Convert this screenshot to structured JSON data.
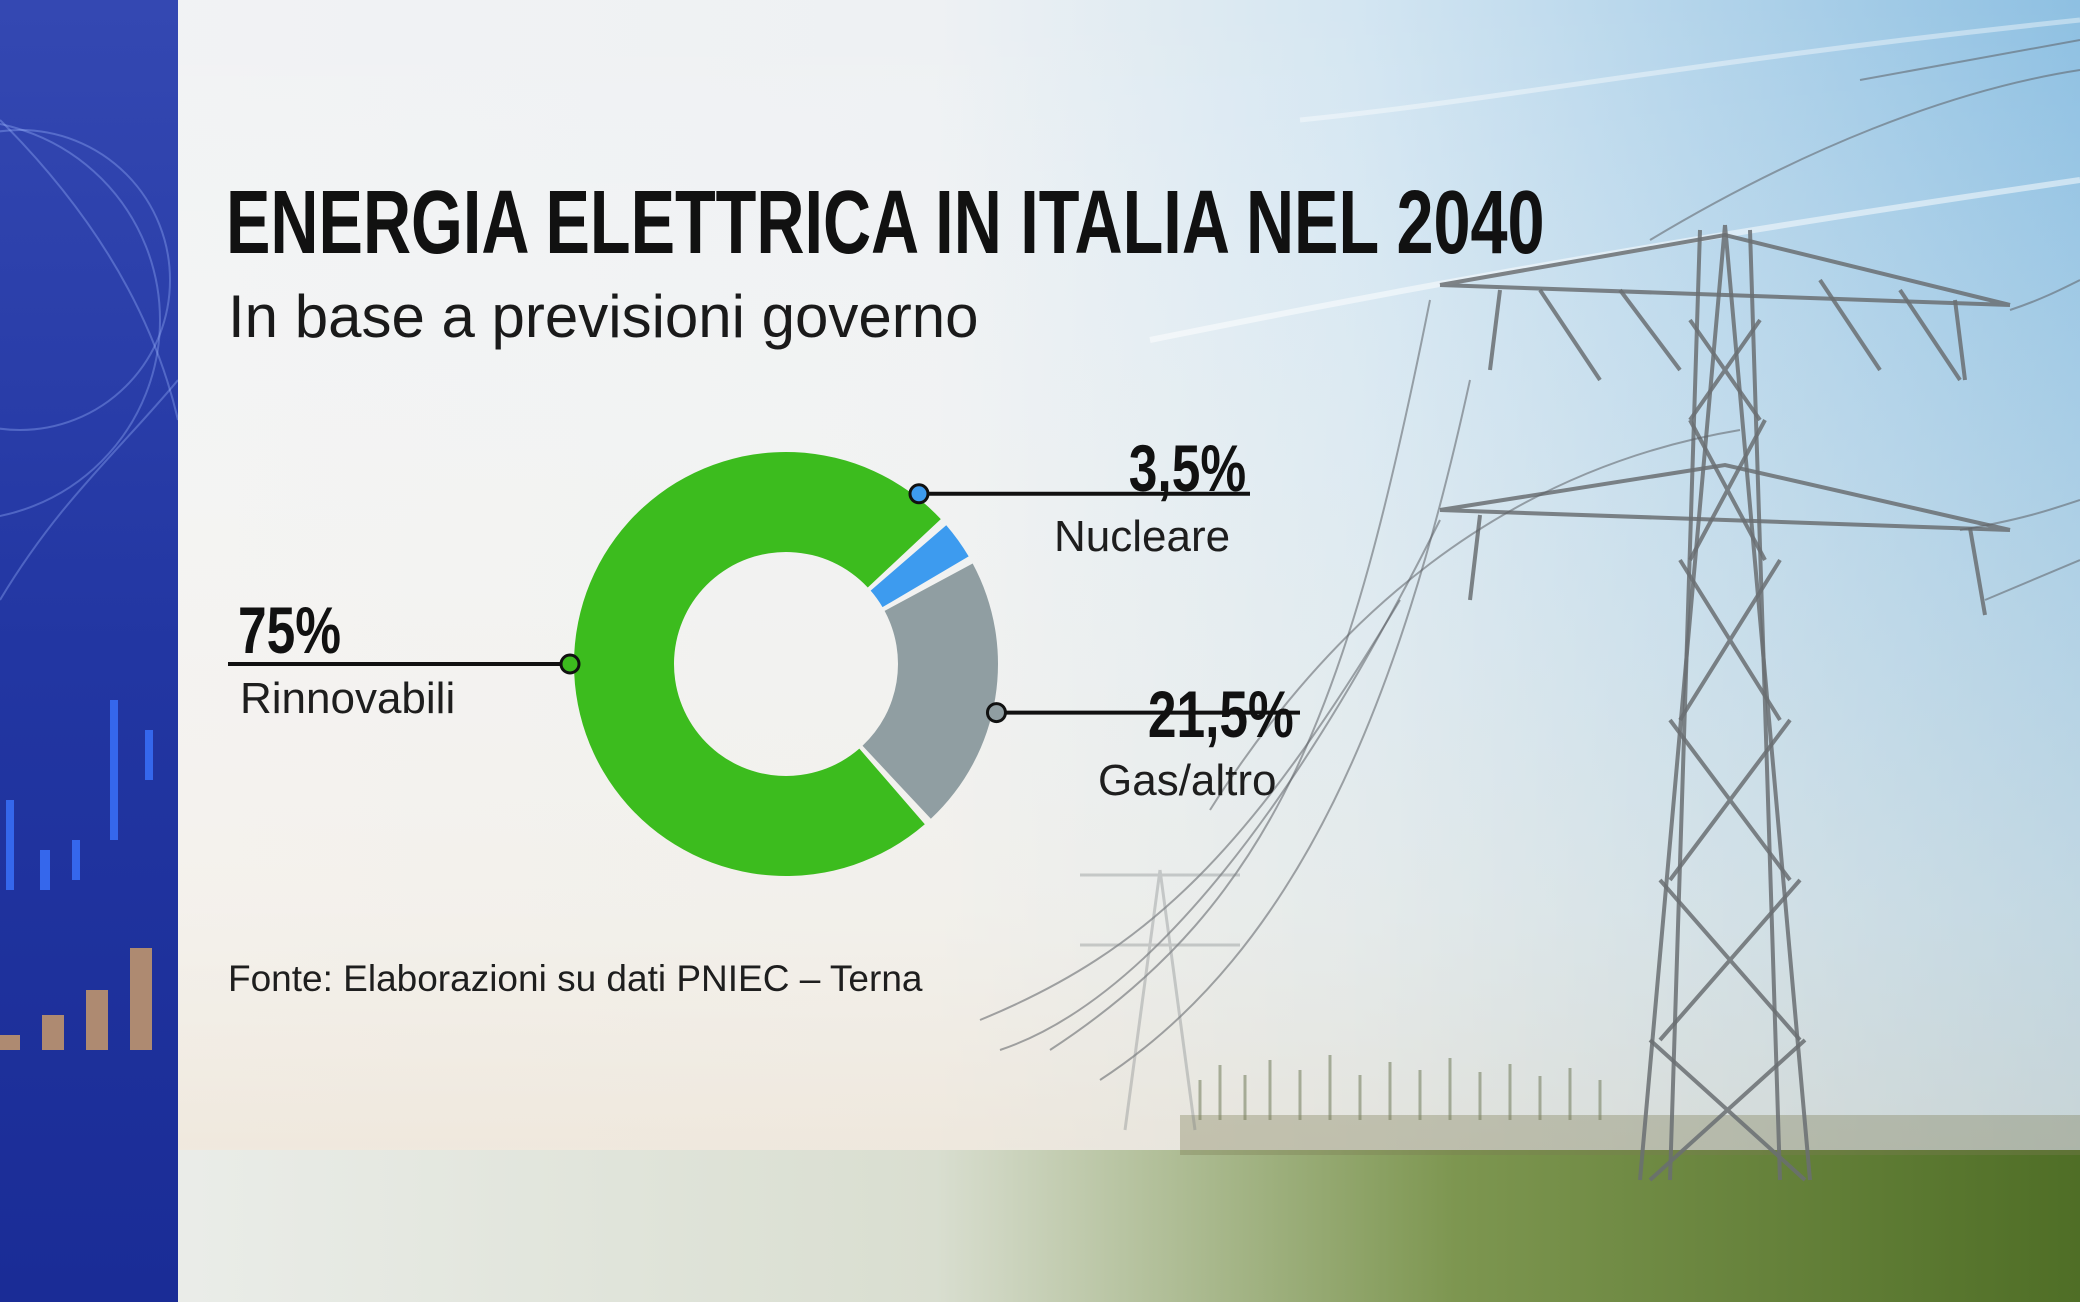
{
  "chart_data": {
    "type": "pie",
    "title": "ENERGIA ELETTRICA IN ITALIA NEL 2040",
    "subtitle": "In base a previsioni governo",
    "source": "Fonte: Elaborazioni su dati PNIEC – Terna",
    "slices": [
      {
        "name": "Nucleare",
        "value": 3.5,
        "label": "3,5%",
        "color": "#3d9bef"
      },
      {
        "name": "Gas/altro",
        "value": 21.5,
        "label": "21,5%",
        "color": "#909ea2"
      },
      {
        "name": "Rinnovabili",
        "value": 75,
        "label": "75%",
        "color": "#3cbc1e"
      }
    ]
  },
  "colors": {
    "left_band": "#2a3fa8",
    "sky": "#a9cfe8",
    "field": "#5c7a2e",
    "leader_line": "#111111"
  }
}
